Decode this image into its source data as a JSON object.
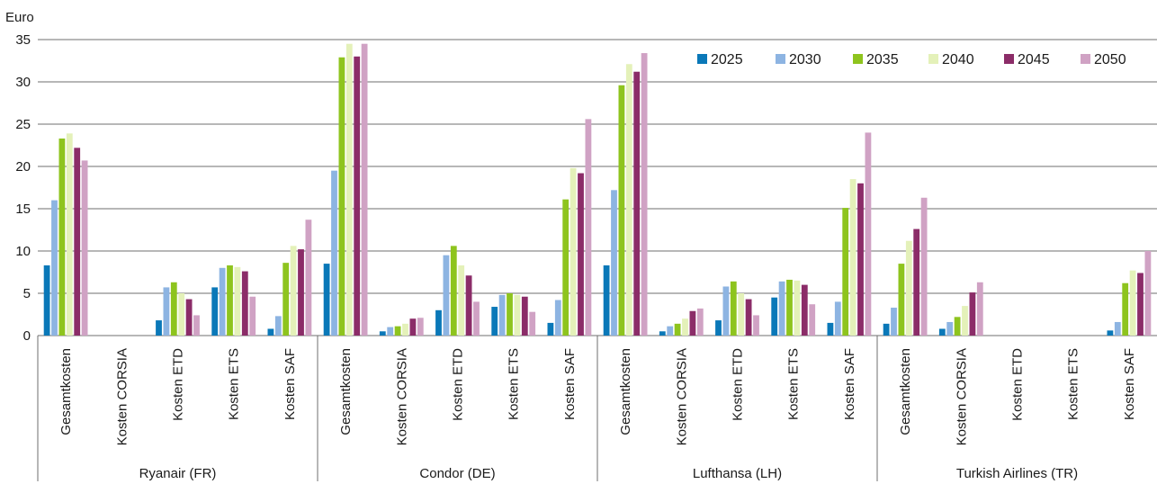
{
  "chart_data": {
    "type": "bar",
    "ylabel": "Euro",
    "ylim": [
      0,
      35
    ],
    "yticks": [
      0,
      5,
      10,
      15,
      20,
      25,
      30,
      35
    ],
    "grid": true,
    "legend_position": "top-right",
    "categories": [
      "Gesamtkosten",
      "Kosten CORSIA",
      "Kosten ETD",
      "Kosten ETS",
      "Kosten SAF"
    ],
    "groups": [
      {
        "name": "Ryanair (FR)",
        "series": [
          {
            "name": "2025",
            "values": [
              8.3,
              0,
              1.8,
              5.7,
              0.8
            ]
          },
          {
            "name": "2030",
            "values": [
              16.0,
              0,
              5.7,
              8.0,
              2.3
            ]
          },
          {
            "name": "2035",
            "values": [
              23.3,
              0,
              6.3,
              8.3,
              8.6
            ]
          },
          {
            "name": "2040",
            "values": [
              23.9,
              0,
              5.0,
              8.1,
              10.6
            ]
          },
          {
            "name": "2045",
            "values": [
              22.2,
              0,
              4.3,
              7.6,
              10.2
            ]
          },
          {
            "name": "2050",
            "values": [
              20.7,
              0,
              2.4,
              4.6,
              13.7
            ]
          }
        ]
      },
      {
        "name": "Condor (DE)",
        "series": [
          {
            "name": "2025",
            "values": [
              8.5,
              0.5,
              3.0,
              3.4,
              1.5
            ]
          },
          {
            "name": "2030",
            "values": [
              19.5,
              1.0,
              9.5,
              4.8,
              4.2
            ]
          },
          {
            "name": "2035",
            "values": [
              32.9,
              1.1,
              10.6,
              5.0,
              16.1
            ]
          },
          {
            "name": "2040",
            "values": [
              34.5,
              1.4,
              8.3,
              4.8,
              19.8
            ]
          },
          {
            "name": "2045",
            "values": [
              33.0,
              2.0,
              7.1,
              4.6,
              19.2
            ]
          },
          {
            "name": "2050",
            "values": [
              34.5,
              2.1,
              4.0,
              2.8,
              25.6
            ]
          }
        ]
      },
      {
        "name": "Lufthansa (LH)",
        "series": [
          {
            "name": "2025",
            "values": [
              8.3,
              0.5,
              1.8,
              4.5,
              1.5
            ]
          },
          {
            "name": "2030",
            "values": [
              17.2,
              1.1,
              5.8,
              6.4,
              4.0
            ]
          },
          {
            "name": "2035",
            "values": [
              29.6,
              1.4,
              6.4,
              6.6,
              15.1
            ]
          },
          {
            "name": "2040",
            "values": [
              32.1,
              2.0,
              5.0,
              6.5,
              18.5
            ]
          },
          {
            "name": "2045",
            "values": [
              31.2,
              2.9,
              4.3,
              6.0,
              18.0
            ]
          },
          {
            "name": "2050",
            "values": [
              33.4,
              3.2,
              2.4,
              3.7,
              24.0
            ]
          }
        ]
      },
      {
        "name": "Turkish Airlines (TR)",
        "series": [
          {
            "name": "2025",
            "values": [
              1.4,
              0.8,
              0,
              0,
              0.6
            ]
          },
          {
            "name": "2030",
            "values": [
              3.3,
              1.6,
              0,
              0,
              1.6
            ]
          },
          {
            "name": "2035",
            "values": [
              8.5,
              2.2,
              0,
              0,
              6.2
            ]
          },
          {
            "name": "2040",
            "values": [
              11.2,
              3.5,
              0,
              0,
              7.7
            ]
          },
          {
            "name": "2045",
            "values": [
              12.6,
              5.1,
              0,
              0,
              7.4
            ]
          },
          {
            "name": "2050",
            "values": [
              16.3,
              6.3,
              0,
              0,
              10.0
            ]
          }
        ]
      }
    ],
    "legend": [
      {
        "name": "2025",
        "color": "#0a78b8"
      },
      {
        "name": "2030",
        "color": "#8db4e2"
      },
      {
        "name": "2035",
        "color": "#8ec41e"
      },
      {
        "name": "2040",
        "color": "#e4f1b9"
      },
      {
        "name": "2045",
        "color": "#8b2c68"
      },
      {
        "name": "2050",
        "color": "#d0a2c4"
      }
    ]
  }
}
